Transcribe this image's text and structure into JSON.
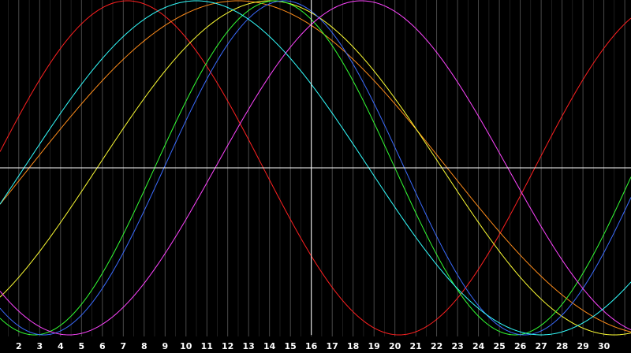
{
  "chart_data": {
    "type": "line",
    "title": "",
    "xlabel": "",
    "ylabel": "",
    "x_ticks": [
      "2",
      "3",
      "4",
      "5",
      "6",
      "7",
      "8",
      "9",
      "10",
      "11",
      "12",
      "13",
      "14",
      "15",
      "16",
      "17",
      "18",
      "19",
      "20",
      "21",
      "22",
      "23",
      "24",
      "25",
      "26",
      "27",
      "28",
      "29",
      "30"
    ],
    "xlim": [
      1.1,
      31.3
    ],
    "ylim": [
      -1,
      1
    ],
    "grid": true,
    "crosshair": {
      "x": 16,
      "y": 0
    },
    "colors": {
      "background": "#000000",
      "grid": "#5a5a5a",
      "axis": "#ffffff",
      "tick_text": "#ffffff"
    },
    "series": [
      {
        "color": "#ff2020",
        "period": 26.0,
        "peak_day": 7.2
      },
      {
        "color": "#ff8c1a",
        "period": 40.0,
        "peak_day": 12.5
      },
      {
        "color": "#ffff33",
        "period": 33.0,
        "peak_day": 14.0
      },
      {
        "color": "#33ff33",
        "period": 23.0,
        "peak_day": 14.25
      },
      {
        "color": "#3a6bff",
        "period": 23.0,
        "peak_day": 14.7
      },
      {
        "color": "#ff44ff",
        "period": 28.0,
        "peak_day": 18.4
      },
      {
        "color": "#33ffff",
        "period": 33.0,
        "peak_day": 10.5
      }
    ]
  }
}
